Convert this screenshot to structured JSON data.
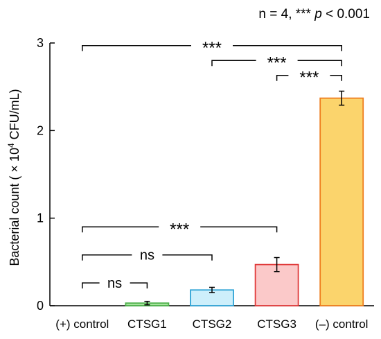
{
  "chart_data": {
    "type": "bar",
    "annotation_prefix": "n = 4, *** ",
    "annotation_p": "p",
    "annotation_suffix": " < 0.001",
    "ylabel_prefix": "Bacterial count ( × 10",
    "ylabel_sup": "4",
    "ylabel_suffix": " CFU/mL)",
    "ylim": [
      0,
      3
    ],
    "yticks": [
      "0",
      "1",
      "2",
      "3"
    ],
    "categories": [
      "(+) control",
      "CTSG1",
      "CTSG2",
      "CTSG3",
      "(–) control"
    ],
    "values": [
      0.0,
      0.03,
      0.18,
      0.47,
      2.37
    ],
    "errors": [
      0.0,
      0.02,
      0.03,
      0.08,
      0.08
    ],
    "fill_colors": [
      "#ffffff",
      "#a9e5a0",
      "#cdeffb",
      "#fbc9c9",
      "#fbd46c"
    ],
    "stroke_colors": [
      "#ffffff",
      "#4cb04a",
      "#2ea3d5",
      "#e03a3a",
      "#ee7d1e"
    ],
    "significance": [
      {
        "from": 0,
        "to": 4,
        "level": 2.97,
        "label": "***"
      },
      {
        "from": 2,
        "to": 4,
        "level": 2.8,
        "label": "***"
      },
      {
        "from": 3,
        "to": 4,
        "level": 2.63,
        "label": "***"
      },
      {
        "from": 0,
        "to": 3,
        "level": 0.9,
        "label": "***"
      },
      {
        "from": 0,
        "to": 2,
        "level": 0.58,
        "label": "ns"
      },
      {
        "from": 0,
        "to": 1,
        "level": 0.26,
        "label": "ns"
      }
    ]
  }
}
